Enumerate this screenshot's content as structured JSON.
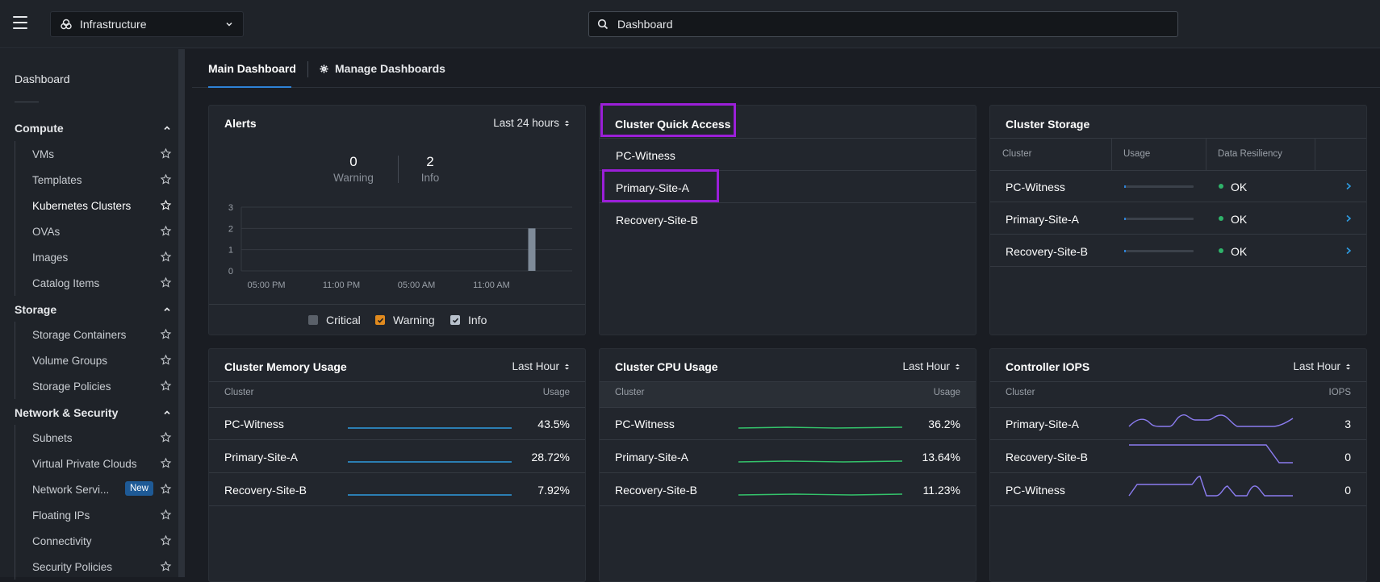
{
  "topbar": {
    "app_name": "Infrastructure",
    "search_placeholder": "Dashboard"
  },
  "sidebar": {
    "dashboard": "Dashboard",
    "groups": [
      {
        "label": "Compute",
        "items": [
          "VMs",
          "Templates",
          "Kubernetes Clusters",
          "OVAs",
          "Images",
          "Catalog Items"
        ]
      },
      {
        "label": "Storage",
        "items": [
          "Storage Containers",
          "Volume Groups",
          "Storage Policies"
        ]
      },
      {
        "label": "Network & Security",
        "items": [
          "Subnets",
          "Virtual Private Clouds",
          "Network Servi...",
          "Floating IPs",
          "Connectivity",
          "Security Policies"
        ]
      }
    ],
    "new_badge": "New"
  },
  "tabs": {
    "main": "Main Dashboard",
    "manage": "Manage Dashboards"
  },
  "alerts": {
    "title": "Alerts",
    "range": "Last 24 hours",
    "warning_count": "0",
    "warning_label": "Warning",
    "info_count": "2",
    "info_label": "Info",
    "legend": [
      "Critical",
      "Warning",
      "Info"
    ]
  },
  "chart_data": {
    "type": "bar",
    "categories": [
      "05:00 PM",
      "11:00 PM",
      "05:00 AM",
      "11:00 AM"
    ],
    "y_ticks": [
      "0",
      "1",
      "2",
      "3"
    ],
    "ylim": [
      0,
      3
    ],
    "bars": [
      {
        "x_frac": 0.95,
        "value": 2,
        "series": "Info"
      }
    ]
  },
  "quick_access": {
    "title": "Cluster Quick Access",
    "items": [
      "PC-Witness",
      "Primary-Site-A",
      "Recovery-Site-B"
    ]
  },
  "storage": {
    "title": "Cluster Storage",
    "headers": [
      "Cluster",
      "Usage",
      "Data Resiliency"
    ],
    "rows": [
      {
        "cluster": "PC-Witness",
        "usage_frac": 0.02,
        "status": "OK"
      },
      {
        "cluster": "Primary-Site-A",
        "usage_frac": 0.02,
        "status": "OK"
      },
      {
        "cluster": "Recovery-Site-B",
        "usage_frac": 0.02,
        "status": "OK"
      }
    ]
  },
  "memory": {
    "title": "Cluster Memory Usage",
    "range": "Last Hour",
    "headers": [
      "Cluster",
      "Usage"
    ],
    "rows": [
      {
        "cluster": "PC-Witness",
        "value": "43.5%"
      },
      {
        "cluster": "Primary-Site-A",
        "value": "28.72%"
      },
      {
        "cluster": "Recovery-Site-B",
        "value": "7.92%"
      }
    ]
  },
  "cpu": {
    "title": "Cluster CPU Usage",
    "range": "Last Hour",
    "headers": [
      "Cluster",
      "Usage"
    ],
    "rows": [
      {
        "cluster": "PC-Witness",
        "value": "36.2%"
      },
      {
        "cluster": "Primary-Site-A",
        "value": "13.64%"
      },
      {
        "cluster": "Recovery-Site-B",
        "value": "11.23%"
      }
    ]
  },
  "iops": {
    "title": "Controller IOPS",
    "range": "Last Hour",
    "headers": [
      "Cluster",
      "IOPS"
    ],
    "rows": [
      {
        "cluster": "Primary-Site-A",
        "value": "3"
      },
      {
        "cluster": "Recovery-Site-B",
        "value": "0"
      },
      {
        "cluster": "PC-Witness",
        "value": "0"
      }
    ]
  },
  "colors": {
    "accent": "#2e82d6",
    "highlight": "#9b1fd8",
    "memory_line": "#2e9be0",
    "cpu_line": "#34c36b",
    "iops_line": "#8b7cf0",
    "ok": "#2fb36a",
    "warning": "#e08a1e"
  }
}
